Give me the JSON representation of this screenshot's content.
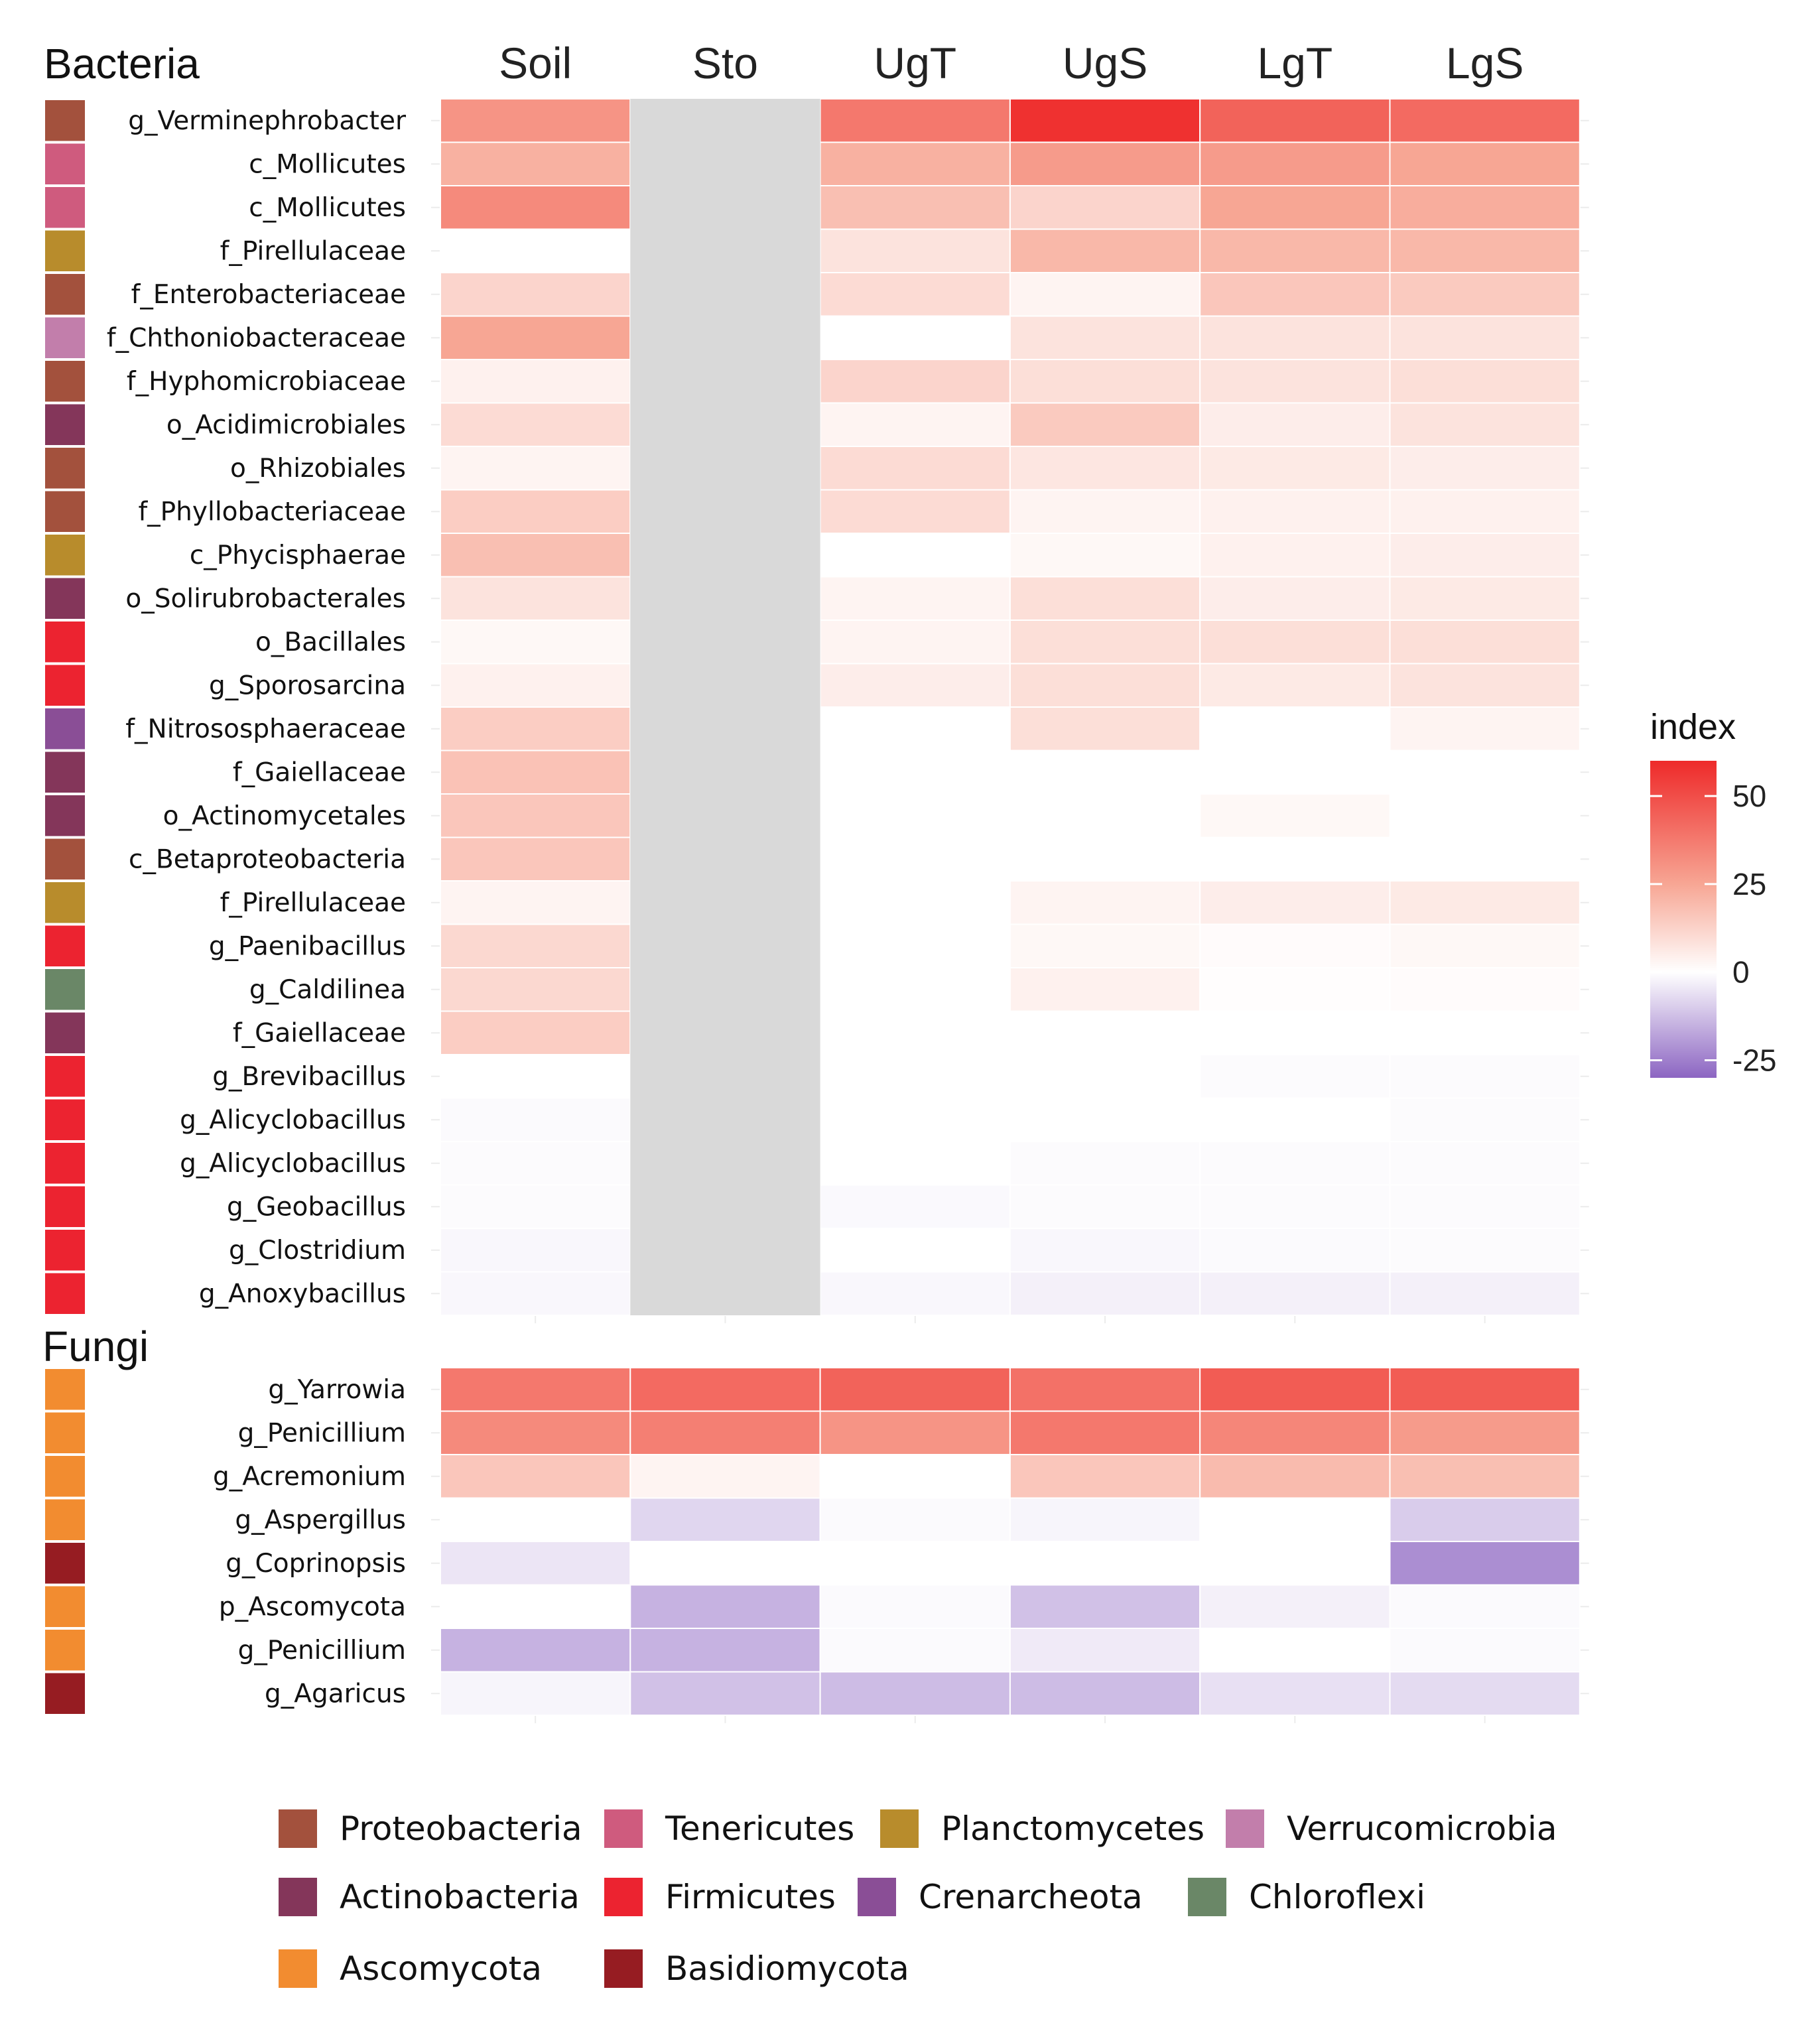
{
  "chart_data": {
    "type": "heatmap",
    "columns": [
      "Soil",
      "Sto",
      "UgT",
      "UgS",
      "LgT",
      "LgS"
    ],
    "colorbar": {
      "title": "index",
      "ticks": [
        50,
        25,
        0,
        -25
      ],
      "tick_labels": [
        "50",
        "25",
        "0",
        "-25"
      ],
      "range": [
        -30,
        60
      ],
      "color_stops": [
        {
          "value": 60,
          "color": "#ee2a2a"
        },
        {
          "value": 25,
          "color": "#f7a694"
        },
        {
          "value": 0,
          "color": "#ffffff"
        },
        {
          "value": -30,
          "color": "#8c65c2"
        }
      ]
    },
    "missing_color": "#d9d9d9",
    "panels": [
      {
        "title": "Bacteria",
        "rows": [
          {
            "label": "g_Verminephrobacter",
            "phylum": "Proteobacteria",
            "values": [
              30,
              null,
              38,
              58,
              44,
              42
            ]
          },
          {
            "label": "c_Mollicutes",
            "phylum": "Tenericutes",
            "values": [
              22,
              null,
              22,
              28,
              28,
              25
            ]
          },
          {
            "label": "c_Mollicutes",
            "phylum": "Tenericutes",
            "values": [
              33,
              null,
              18,
              12,
              25,
              23
            ]
          },
          {
            "label": "f_Pirellulaceae",
            "phylum": "Planctomycetes",
            "values": [
              0,
              null,
              8,
              20,
              20,
              20
            ]
          },
          {
            "label": "f_Enterobacteriaceae",
            "phylum": "Proteobacteria",
            "values": [
              12,
              null,
              10,
              3,
              16,
              15
            ]
          },
          {
            "label": "f_Chthoniobacteraceae",
            "phylum": "Verrucomicrobia",
            "values": [
              25,
              null,
              0,
              8,
              8,
              8
            ]
          },
          {
            "label": "f_Hyphomicrobiaceae",
            "phylum": "Proteobacteria",
            "values": [
              4,
              null,
              12,
              9,
              8,
              9
            ]
          },
          {
            "label": "o_Acidimicrobiales",
            "phylum": "Actinobacteria",
            "values": [
              10,
              null,
              3,
              15,
              5,
              8
            ]
          },
          {
            "label": "o_Rhizobiales",
            "phylum": "Proteobacteria",
            "values": [
              3,
              null,
              10,
              7,
              6,
              5
            ]
          },
          {
            "label": "f_Phyllobacteriaceae",
            "phylum": "Proteobacteria",
            "values": [
              14,
              null,
              10,
              3,
              4,
              4
            ]
          },
          {
            "label": "c_Phycisphaerae",
            "phylum": "Planctomycetes",
            "values": [
              18,
              null,
              0,
              2,
              4,
              5
            ]
          },
          {
            "label": "o_Solirubrobacterales",
            "phylum": "Actinobacteria",
            "values": [
              8,
              null,
              3,
              9,
              5,
              6
            ]
          },
          {
            "label": "o_Bacillales",
            "phylum": "Firmicutes",
            "values": [
              2,
              null,
              3,
              9,
              9,
              9
            ]
          },
          {
            "label": "g_Sporosarcina",
            "phylum": "Firmicutes",
            "values": [
              4,
              null,
              5,
              9,
              6,
              8
            ]
          },
          {
            "label": "f_Nitrososphaeraceae",
            "phylum": "Crenarcheota",
            "values": [
              14,
              null,
              0,
              9,
              0,
              3
            ]
          },
          {
            "label": "f_Gaiellaceae",
            "phylum": "Actinobacteria",
            "values": [
              17,
              null,
              0,
              0,
              0,
              0
            ]
          },
          {
            "label": "o_Actinomycetales",
            "phylum": "Actinobacteria",
            "values": [
              16,
              null,
              0,
              0,
              2,
              0
            ]
          },
          {
            "label": "c_Betaproteobacteria",
            "phylum": "Proteobacteria",
            "values": [
              16,
              null,
              0,
              0,
              0,
              0
            ]
          },
          {
            "label": "f_Pirellulaceae",
            "phylum": "Planctomycetes",
            "values": [
              3,
              null,
              0,
              3,
              5,
              6
            ]
          },
          {
            "label": "g_Paenibacillus",
            "phylum": "Firmicutes",
            "values": [
              11,
              null,
              0,
              2,
              1,
              2
            ]
          },
          {
            "label": "g_Caldilinea",
            "phylum": "Chloroflexi",
            "values": [
              11,
              null,
              0,
              4,
              0.5,
              1
            ]
          },
          {
            "label": "f_Gaiellaceae",
            "phylum": "Actinobacteria",
            "values": [
              14,
              null,
              0,
              0,
              0,
              0
            ]
          },
          {
            "label": "g_Brevibacillus",
            "phylum": "Firmicutes",
            "values": [
              0,
              null,
              0,
              0,
              -0.8,
              -0.8
            ]
          },
          {
            "label": "g_Alicyclobacillus",
            "phylum": "Firmicutes",
            "values": [
              -1,
              null,
              0,
              0,
              0,
              -0.8
            ]
          },
          {
            "label": "g_Alicyclobacillus",
            "phylum": "Firmicutes",
            "values": [
              -0.8,
              null,
              0,
              -0.8,
              -0.8,
              -0.8
            ]
          },
          {
            "label": "g_Geobacillus",
            "phylum": "Firmicutes",
            "values": [
              -0.8,
              null,
              -1.2,
              -0.8,
              -0.8,
              -0.8
            ]
          },
          {
            "label": "g_Clostridium",
            "phylum": "Firmicutes",
            "values": [
              -1.5,
              null,
              0,
              -1.5,
              -1,
              -0.8
            ]
          },
          {
            "label": "g_Anoxybacillus",
            "phylum": "Firmicutes",
            "values": [
              -1.5,
              null,
              -1.5,
              -3,
              -3,
              -3
            ]
          }
        ]
      },
      {
        "title": "Fungi",
        "rows": [
          {
            "label": "g_Yarrowia",
            "phylum": "Ascomycota",
            "values": [
              38,
              42,
              44,
              40,
              46,
              46
            ]
          },
          {
            "label": "g_Penicillium",
            "phylum": "Ascomycota",
            "values": [
              33,
              36,
              30,
              38,
              34,
              28
            ]
          },
          {
            "label": "g_Acremonium",
            "phylum": "Ascomycota",
            "values": [
              16,
              3,
              0,
              16,
              19,
              18
            ]
          },
          {
            "label": "g_Aspergillus",
            "phylum": "Ascomycota",
            "values": [
              0,
              -8,
              -1,
              -2,
              0,
              -10
            ]
          },
          {
            "label": "g_Coprinopsis",
            "phylum": "Basidiomycota",
            "values": [
              -5,
              0,
              0,
              0,
              0,
              -22
            ]
          },
          {
            "label": "p_Ascomycota",
            "phylum": "Ascomycota",
            "values": [
              0,
              -15,
              -1,
              -12,
              -3,
              -1
            ]
          },
          {
            "label": "g_Penicillium",
            "phylum": "Ascomycota",
            "values": [
              -15,
              -15,
              -1,
              -4,
              0,
              -1
            ]
          },
          {
            "label": "g_Agaricus",
            "phylum": "Basidiomycota",
            "values": [
              -2,
              -12,
              -13,
              -13,
              -6,
              -7
            ]
          }
        ]
      }
    ],
    "phylum_legend": [
      {
        "name": "Proteobacteria",
        "color": "#a3513d"
      },
      {
        "name": "Tenericutes",
        "color": "#cf5b7e"
      },
      {
        "name": "Planctomycetes",
        "color": "#b88c2c"
      },
      {
        "name": "Verrucomicrobia",
        "color": "#c27eab"
      },
      {
        "name": "Actinobacteria",
        "color": "#84365a"
      },
      {
        "name": "Firmicutes",
        "color": "#ec2330"
      },
      {
        "name": "Crenarcheota",
        "color": "#8a4e96"
      },
      {
        "name": "Chloroflexi",
        "color": "#6a8767"
      },
      {
        "name": "Ascomycota",
        "color": "#f28c30"
      },
      {
        "name": "Basidiomycota",
        "color": "#961c22"
      }
    ]
  }
}
